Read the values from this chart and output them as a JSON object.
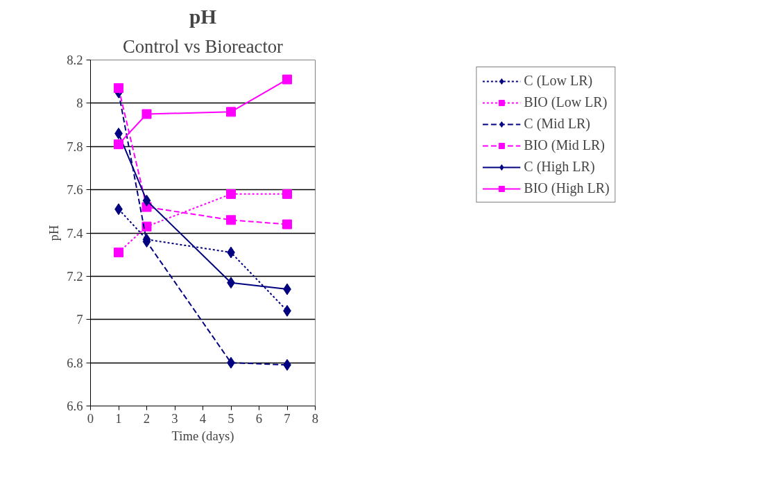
{
  "chart_data": {
    "type": "line",
    "title": "pH",
    "subtitle": "Control vs Bioreactor",
    "xlabel": "Time (days)",
    "ylabel": "pH",
    "x": [
      1,
      2,
      5,
      7
    ],
    "series": [
      {
        "name": "C (Low LR)",
        "color": "#000080",
        "marker": "diamond",
        "line_style": "dotted",
        "values": [
          7.51,
          7.37,
          7.31,
          7.04
        ]
      },
      {
        "name": "BIO (Low LR)",
        "color": "#ff00ff",
        "marker": "square",
        "line_style": "dotted",
        "values": [
          7.31,
          7.43,
          7.58,
          7.58
        ]
      },
      {
        "name": "C (Mid LR)",
        "color": "#000080",
        "marker": "diamond",
        "line_style": "dashed",
        "values": [
          8.05,
          7.36,
          6.8,
          6.79
        ]
      },
      {
        "name": "BIO (Mid LR)",
        "color": "#ff00ff",
        "marker": "square",
        "line_style": "dashed",
        "values": [
          8.07,
          7.52,
          7.46,
          7.44
        ]
      },
      {
        "name": "C (High LR)",
        "color": "#000080",
        "marker": "diamond",
        "line_style": "solid",
        "values": [
          7.86,
          7.55,
          7.17,
          7.14
        ]
      },
      {
        "name": "BIO (High LR)",
        "color": "#ff00ff",
        "marker": "square",
        "line_style": "solid",
        "values": [
          7.81,
          7.95,
          7.96,
          8.11
        ]
      }
    ],
    "xlim": [
      0,
      8
    ],
    "xticks": [
      0,
      1,
      2,
      3,
      4,
      5,
      6,
      7,
      8
    ],
    "ylim": [
      6.6,
      8.2
    ],
    "yticks": [
      6.6,
      6.8,
      7,
      7.2,
      7.4,
      7.6,
      7.8,
      8,
      8.2
    ],
    "grid": "y",
    "legend": "right"
  }
}
